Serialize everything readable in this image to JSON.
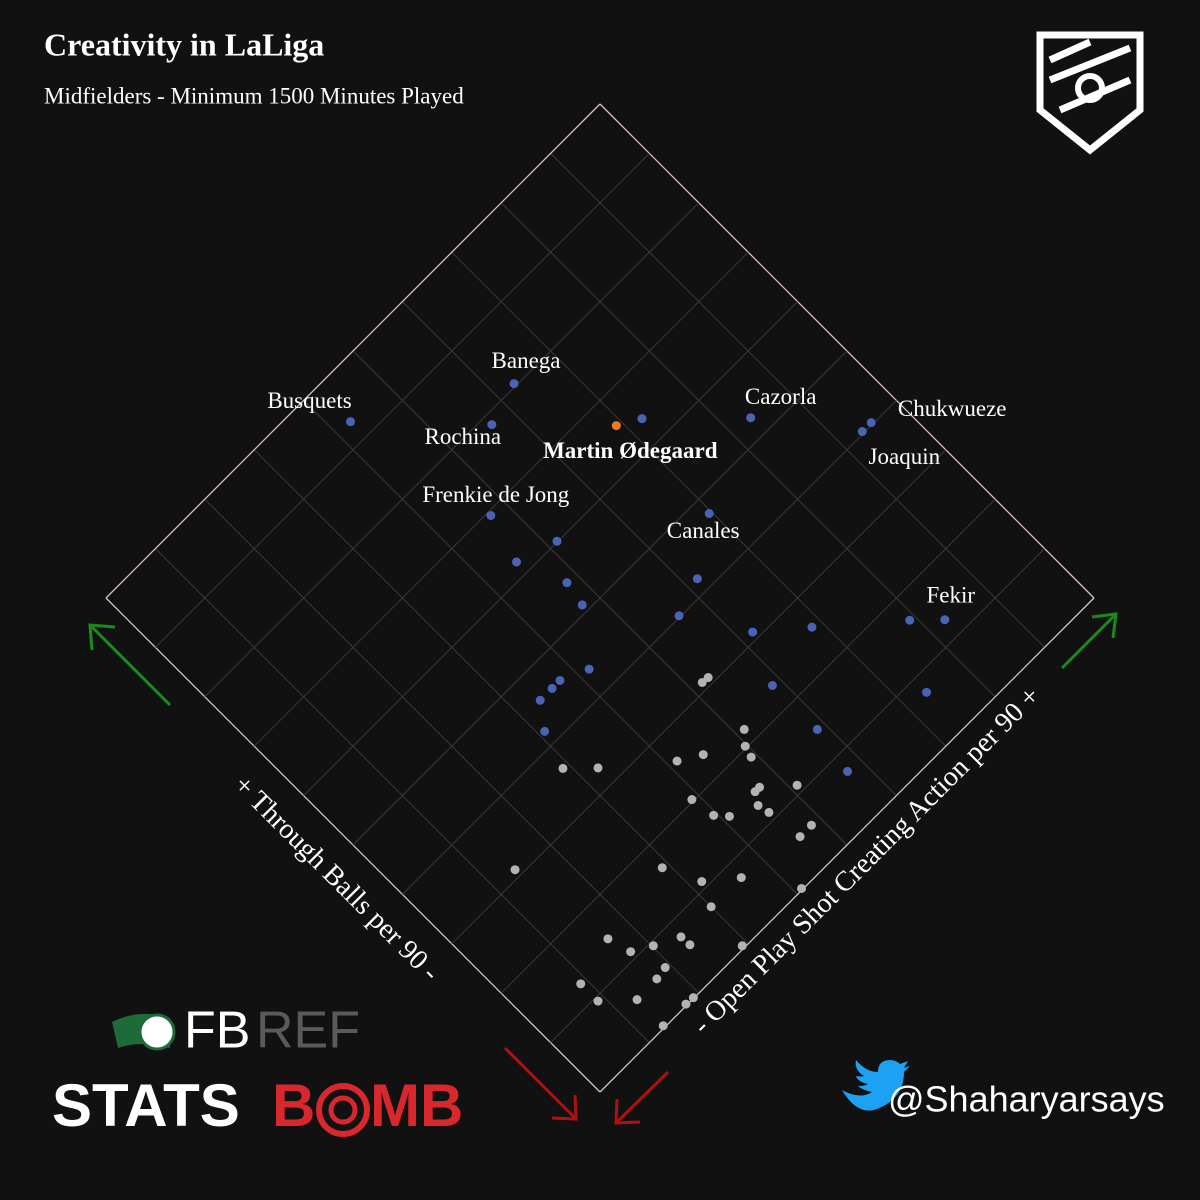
{
  "chart_data": {
    "type": "scatter",
    "title": "Creativity in LaLiga",
    "subtitle": "Midfielders - Minimum 1500 Minutes Played",
    "x_label": "- Open Play Shot Creating Action per 90 +",
    "y_label": "+ Through Balls per 90 -",
    "xlim": [
      0,
      10
    ],
    "ylim": [
      0,
      10
    ],
    "xticks": [
      0,
      1,
      2,
      3,
      4,
      5,
      6,
      7,
      8,
      9,
      10
    ],
    "yticks": [
      0,
      1,
      2,
      3,
      4,
      5,
      6,
      7,
      8,
      9,
      10
    ],
    "grid": true,
    "series": [
      {
        "color": "#b3b3b3",
        "x": [
          5.29,
          5.18,
          5.13,
          4.97,
          4.92,
          4.46,
          4.13,
          2.9,
          3.26,
          4.7,
          4.61,
          5.1,
          3.89,
          4.5,
          4.54,
          3.95,
          4.1,
          4.84,
          4.61,
          1.39,
          2.9,
          3.6,
          3.16,
          4.1,
          3.0,
          1.63,
          1.73,
          2.02,
          2.39,
          2.4,
          2.92,
          1.92,
          1.72,
          0.9,
          0.9,
          1.31,
          1.9,
          1.76,
          1.31
        ],
        "y": [
          3.1,
          3.11,
          2.21,
          2.03,
          1.86,
          2.37,
          2.57,
          3.65,
          3.3,
          1.47,
          1.47,
          1.11,
          2.03,
          1.3,
          1.12,
          1.65,
          1.48,
          0.56,
          0.56,
          3.11,
          1.64,
          0.74,
          1.1,
          0.02,
          0.75,
          1.47,
          1.11,
          0.94,
          0.75,
          0.58,
          0.04,
          0.6,
          0.57,
          1.29,
          0.94,
          0.56,
          0.01,
          0.02,
          0.03
        ]
      },
      {
        "color": "#4a63b5",
        "x": [
          4.26,
          6.3,
          5.66,
          7.24,
          8.35,
          9.52,
          9.34,
          4.73,
          5.14,
          4.52,
          6.96,
          4.82,
          4.75,
          6.18,
          5.62,
          6.2,
          6.85,
          7.91,
          8.27,
          4.17,
          3.76,
          3.6,
          3.36,
          3.09,
          5.86,
          7.35,
          5.87,
          5.75
        ],
        "y": [
          9.31,
          8.04,
          7.85,
          6.39,
          5.3,
          4.03,
          4.03,
          6.94,
          6.01,
          6.21,
          4.75,
          5.49,
          5.11,
          4.21,
          4.02,
          3.11,
          2.56,
          1.64,
          1.29,
          4.39,
          4.57,
          4.57,
          4.57,
          4.21,
          2.37,
          0.74,
          1.47,
          0.74
        ],
        "labels": [
          "Busquets",
          "Banega",
          "Rochina",
          null,
          "Cazorla",
          "Chukwueze",
          "Joaquin",
          "Frenkie de Jong",
          null,
          null,
          "Canales",
          null,
          null,
          null,
          null,
          null,
          null,
          "Fekir",
          null,
          null,
          null,
          null,
          null,
          null,
          null,
          null,
          null,
          null
        ]
      },
      {
        "color": "#f07b1e",
        "x": [
          6.91
        ],
        "y": [
          6.58
        ],
        "labels": [
          "Martin Ødegaard"
        ]
      }
    ],
    "credit": "@Shaharyarsays",
    "logos": [
      "FB",
      "REF",
      "STATS",
      "B",
      "MB"
    ]
  }
}
